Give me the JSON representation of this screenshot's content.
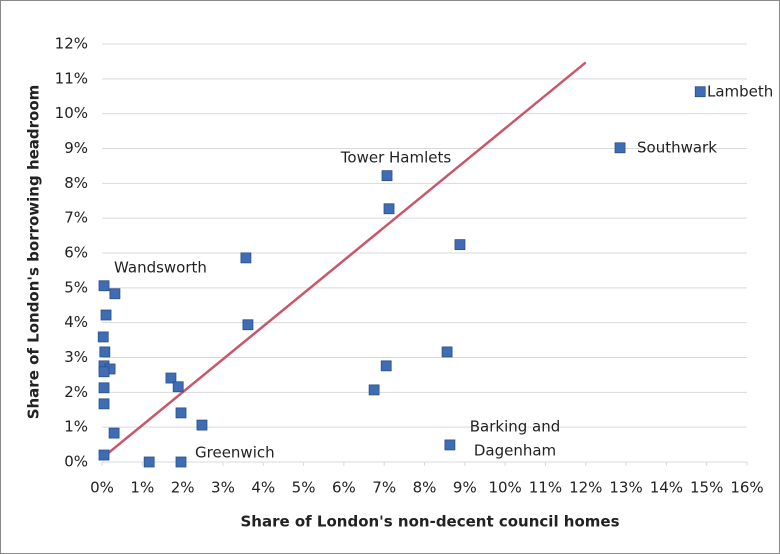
{
  "chart_data": {
    "type": "scatter",
    "x_label": "Share of London's non-decent council  homes",
    "y_label": "Share of London's borrowing headroom",
    "color": "#3e6db5",
    "x": [
      0.05,
      0.32,
      0.1,
      0.03,
      0.07,
      0.05,
      0.2,
      0.05,
      0.05,
      0.05,
      0.05,
      0.3,
      1.17,
      1.96,
      1.71,
      1.89,
      1.96,
      2.48,
      3.57,
      3.62,
      7.07,
      7.12,
      7.05,
      6.75,
      8.88,
      8.56,
      8.63,
      12.85,
      14.84
    ],
    "values": [
      5.06,
      4.83,
      4.22,
      3.59,
      3.16,
      2.76,
      2.67,
      2.59,
      2.13,
      1.67,
      0.2,
      0.83,
      0,
      0,
      2.41,
      2.16,
      1.41,
      1.06,
      5.86,
      3.94,
      8.22,
      7.27,
      2.76,
      2.07,
      6.24,
      3.16,
      0.49,
      9.02,
      10.63
    ],
    "trendline": {
      "color": "#c9566b",
      "x": [
        0,
        12
      ],
      "y": [
        0.11,
        11.47
      ]
    },
    "annotations": [
      [
        "Lambeth"
      ],
      [
        "Southwark"
      ],
      [
        "Tower Hamlets"
      ],
      [
        "Wandsworth"
      ],
      [
        "Greenwich"
      ],
      [
        "Barking and",
        "Dagenham"
      ]
    ],
    "xlim": [
      0,
      16
    ],
    "ylim": [
      0,
      12
    ],
    "xticks": [
      {
        "value": 0,
        "label": "0%"
      },
      {
        "value": 1,
        "label": "1%"
      },
      {
        "value": 2,
        "label": "2%"
      },
      {
        "value": 3,
        "label": "3%"
      },
      {
        "value": 4,
        "label": "4%"
      },
      {
        "value": 5,
        "label": "5%"
      },
      {
        "value": 6,
        "label": "6%"
      },
      {
        "value": 7,
        "label": "7%"
      },
      {
        "value": 8,
        "label": "8%"
      },
      {
        "value": 9,
        "label": "9%"
      },
      {
        "value": 10,
        "label": "10%"
      },
      {
        "value": 11,
        "label": "11%"
      },
      {
        "value": 12,
        "label": "12%"
      },
      {
        "value": 13,
        "label": "13%"
      },
      {
        "value": 14,
        "label": "14%"
      },
      {
        "value": 15,
        "label": "15%"
      },
      {
        "value": 16,
        "label": "16%"
      }
    ],
    "yticks": [
      {
        "value": 0,
        "label": "0%"
      },
      {
        "value": 1,
        "label": "1%"
      },
      {
        "value": 2,
        "label": "2%"
      },
      {
        "value": 3,
        "label": "3%"
      },
      {
        "value": 4,
        "label": "4%"
      },
      {
        "value": 5,
        "label": "5%"
      },
      {
        "value": 6,
        "label": "6%"
      },
      {
        "value": 7,
        "label": "7%"
      },
      {
        "value": 8,
        "label": "8%"
      },
      {
        "value": 9,
        "label": "9%"
      },
      {
        "value": 10,
        "label": "10%"
      },
      {
        "value": 11,
        "label": "11%"
      },
      {
        "value": 12,
        "label": "12%"
      }
    ],
    "grid": true
  }
}
